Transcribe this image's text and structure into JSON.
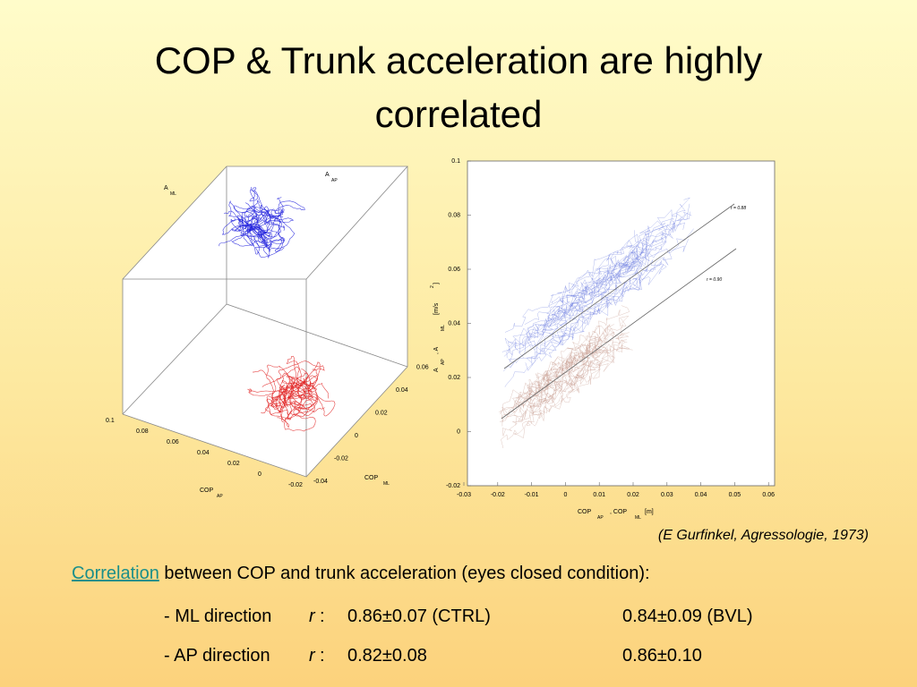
{
  "title": [
    "COP & Trunk acceleration are highly",
    "correlated"
  ],
  "figure_3d": {
    "label_aml": [
      "A",
      "ML"
    ],
    "label_aap": [
      "A",
      "AP"
    ],
    "label_copap": [
      "COP",
      "AP"
    ],
    "label_copml": [
      "COP",
      "ML"
    ],
    "copap_ticks": [
      "0.1",
      "0.08",
      "0.06",
      "0.04",
      "0.02",
      "0",
      "-0.02"
    ],
    "copml_ticks": [
      "-0.04",
      "-0.02",
      "0",
      "0.02",
      "0.04",
      "0.06"
    ]
  },
  "figure_2d": {
    "xticks": [
      "-0.03",
      "-0.02",
      "-0.01",
      "0",
      "0.01",
      "0.02",
      "0.03",
      "0.04",
      "0.05",
      "0.06"
    ],
    "yticks": [
      "0.1",
      "0.08",
      "0.06",
      "0.04",
      "0.02",
      "0",
      "-0.02"
    ],
    "xlabel": [
      "COP",
      "AP",
      ", COP",
      "ML",
      "[m]"
    ],
    "ylabel": [
      "A",
      "AP",
      ", A",
      "ML",
      "[m/s",
      "2",
      "]"
    ],
    "annotations": [
      "r = 0.88",
      "r = 0.90"
    ]
  },
  "citation": "(E Gurfinkel, Agressologie, 1973)",
  "paragraph": {
    "link": "Correlation",
    "text": " between COP and trunk acceleration (eyes closed condition):"
  },
  "rows": [
    [
      "- ML direction ",
      "r",
      " :",
      "0.86±0.07 (CTRL)",
      "0.84±0.09 (BVL)"
    ],
    [
      "- AP direction ",
      "r",
      " :",
      "0.82±0.08",
      "0.86±0.10"
    ]
  ]
}
